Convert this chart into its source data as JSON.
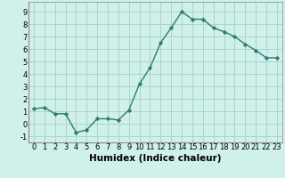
{
  "title": "",
  "xlabel": "Humidex (Indice chaleur)",
  "ylabel": "",
  "x": [
    0,
    1,
    2,
    3,
    4,
    5,
    6,
    7,
    8,
    9,
    10,
    11,
    12,
    13,
    14,
    15,
    16,
    17,
    18,
    19,
    20,
    21,
    22,
    23
  ],
  "y": [
    1.2,
    1.3,
    0.8,
    0.8,
    -0.7,
    -0.5,
    0.4,
    0.4,
    0.3,
    1.1,
    3.2,
    4.5,
    6.5,
    7.7,
    9.0,
    8.4,
    8.4,
    7.7,
    7.4,
    7.0,
    6.4,
    5.9,
    5.3,
    5.3
  ],
  "line_color": "#2e7d6e",
  "marker": "D",
  "markersize": 2.2,
  "linewidth": 1.0,
  "ylim": [
    -1.5,
    9.8
  ],
  "xlim": [
    -0.5,
    23.5
  ],
  "bg_color": "#cff0eb",
  "grid_color": "#aad4cc",
  "tick_label_fontsize": 6,
  "xlabel_fontsize": 7.5,
  "yticks": [
    -1,
    0,
    1,
    2,
    3,
    4,
    5,
    6,
    7,
    8,
    9
  ]
}
